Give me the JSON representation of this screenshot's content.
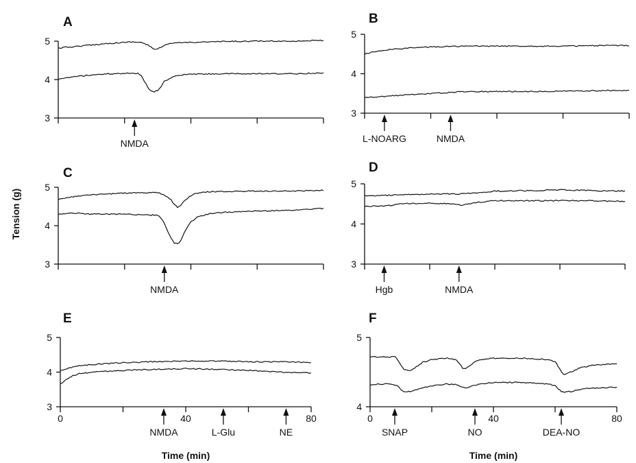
{
  "figure": {
    "ylabel": "Tension (g)"
  },
  "chart_data": [
    {
      "type": "line",
      "panel": "A",
      "ylim": [
        3,
        5
      ],
      "yticks": [
        3,
        4,
        5
      ],
      "xlim": [
        0,
        80
      ],
      "xticks": [
        0,
        20,
        40,
        60,
        80
      ],
      "xtick_labels": [],
      "xlabel": "",
      "series": [
        {
          "x": [
            0,
            5,
            10,
            15,
            20,
            22,
            25,
            27,
            29,
            31,
            33,
            36,
            40,
            50,
            60,
            70,
            80
          ],
          "values": [
            4.82,
            4.86,
            4.9,
            4.94,
            4.97,
            4.98,
            4.97,
            4.9,
            4.78,
            4.84,
            4.92,
            4.96,
            4.97,
            4.99,
            5.0,
            5.0,
            5.02
          ]
        },
        {
          "x": [
            0,
            5,
            10,
            15,
            20,
            22,
            24,
            25,
            26,
            27,
            28,
            29,
            30,
            31,
            32,
            34,
            36,
            38,
            40,
            50,
            60,
            70,
            80
          ],
          "values": [
            4.0,
            4.08,
            4.12,
            4.15,
            4.16,
            4.17,
            4.16,
            4.1,
            3.95,
            3.8,
            3.7,
            3.68,
            3.72,
            3.82,
            3.95,
            4.05,
            4.1,
            4.13,
            4.14,
            4.15,
            4.15,
            4.15,
            4.17
          ]
        }
      ],
      "annotations": [
        {
          "label": "NMDA",
          "x": 23
        }
      ]
    },
    {
      "type": "line",
      "panel": "B",
      "ylim": [
        3,
        5
      ],
      "yticks": [
        3,
        4,
        5
      ],
      "xlim": [
        0,
        80
      ],
      "xticks": [
        0,
        20,
        40,
        60,
        80
      ],
      "xtick_labels": [],
      "xlabel": "",
      "series": [
        {
          "x": [
            0,
            3,
            6,
            10,
            15,
            20,
            25,
            30,
            40,
            50,
            60,
            70,
            80
          ],
          "values": [
            4.5,
            4.56,
            4.6,
            4.63,
            4.66,
            4.68,
            4.69,
            4.7,
            4.7,
            4.7,
            4.7,
            4.71,
            4.72
          ]
        },
        {
          "x": [
            0,
            5,
            10,
            20,
            25,
            30,
            40,
            50,
            60,
            70,
            80
          ],
          "values": [
            3.4,
            3.42,
            3.45,
            3.5,
            3.52,
            3.55,
            3.55,
            3.55,
            3.56,
            3.57,
            3.58
          ]
        }
      ],
      "annotations": [
        {
          "label": "L-NOARG",
          "x": 6
        },
        {
          "label": "NMDA",
          "x": 26
        }
      ]
    },
    {
      "type": "line",
      "panel": "C",
      "ylim": [
        3,
        5
      ],
      "yticks": [
        3,
        4,
        5
      ],
      "xlim": [
        0,
        80
      ],
      "xticks": [
        0,
        20,
        40,
        60,
        80
      ],
      "xtick_labels": [],
      "xlabel": "",
      "series": [
        {
          "x": [
            0,
            5,
            10,
            20,
            30,
            32,
            34,
            35,
            36,
            37,
            38,
            40,
            42,
            45,
            50,
            60,
            70,
            80
          ],
          "values": [
            4.68,
            4.76,
            4.8,
            4.85,
            4.86,
            4.8,
            4.68,
            4.55,
            4.48,
            4.52,
            4.65,
            4.78,
            4.85,
            4.88,
            4.89,
            4.9,
            4.9,
            4.92
          ]
        },
        {
          "x": [
            0,
            5,
            10,
            20,
            30,
            31,
            32,
            33,
            34,
            35,
            36,
            37,
            38,
            39,
            40,
            42,
            45,
            50,
            60,
            70,
            80
          ],
          "values": [
            4.3,
            4.33,
            4.3,
            4.3,
            4.27,
            4.2,
            4.05,
            3.85,
            3.68,
            3.55,
            3.52,
            3.62,
            3.82,
            3.98,
            4.1,
            4.22,
            4.3,
            4.35,
            4.38,
            4.4,
            4.45
          ]
        }
      ],
      "annotations": [
        {
          "label": "NMDA",
          "x": 32
        }
      ]
    },
    {
      "type": "line",
      "panel": "D",
      "ylim": [
        3,
        5
      ],
      "yticks": [
        3,
        4,
        5
      ],
      "xlim": [
        0,
        80
      ],
      "xticks": [
        0,
        20,
        40,
        60,
        80
      ],
      "xtick_labels": [],
      "xlabel": "",
      "series": [
        {
          "x": [
            0,
            10,
            20,
            30,
            35,
            40,
            50,
            60,
            70,
            80
          ],
          "values": [
            4.7,
            4.72,
            4.75,
            4.75,
            4.78,
            4.82,
            4.83,
            4.85,
            4.83,
            4.82
          ]
        },
        {
          "x": [
            0,
            5,
            8,
            10,
            20,
            28,
            30,
            33,
            36,
            40,
            50,
            60,
            70,
            80
          ],
          "values": [
            4.44,
            4.45,
            4.46,
            4.5,
            4.52,
            4.5,
            4.46,
            4.52,
            4.55,
            4.58,
            4.58,
            4.58,
            4.58,
            4.56
          ]
        }
      ],
      "annotations": [
        {
          "label": "Hgb",
          "x": 6
        },
        {
          "label": "NMDA",
          "x": 29
        }
      ]
    },
    {
      "type": "line",
      "panel": "E",
      "ylim": [
        3,
        5
      ],
      "yticks": [
        3,
        4,
        5
      ],
      "xlim": [
        0,
        80
      ],
      "xticks": [
        0,
        20,
        40,
        60,
        80
      ],
      "xtick_labels": [
        "0",
        "",
        "40",
        "",
        "80"
      ],
      "xlabel": "Time (min)",
      "series": [
        {
          "x": [
            0,
            3,
            6,
            10,
            20,
            30,
            40,
            50,
            60,
            70,
            80
          ],
          "values": [
            4.05,
            4.12,
            4.18,
            4.22,
            4.27,
            4.3,
            4.32,
            4.32,
            4.3,
            4.3,
            4.28
          ]
        },
        {
          "x": [
            0,
            2,
            4,
            6,
            10,
            20,
            30,
            40,
            50,
            60,
            70,
            80
          ],
          "values": [
            3.65,
            3.8,
            3.9,
            3.95,
            4.0,
            4.05,
            4.08,
            4.1,
            4.08,
            4.05,
            4.0,
            3.98
          ]
        }
      ],
      "annotations": [
        {
          "label": "NMDA",
          "x": 33
        },
        {
          "label": "L-Glu",
          "x": 52
        },
        {
          "label": "NE",
          "x": 72
        }
      ]
    },
    {
      "type": "line",
      "panel": "F",
      "ylim": [
        4,
        5
      ],
      "yticks": [
        4,
        5
      ],
      "xlim": [
        0,
        80
      ],
      "xticks": [
        0,
        20,
        40,
        60,
        80
      ],
      "xtick_labels": [
        "0",
        "",
        "40",
        "",
        "80"
      ],
      "xlabel": "Time (min)",
      "series": [
        {
          "x": [
            0,
            5,
            8,
            9,
            10,
            11,
            13,
            15,
            17,
            20,
            25,
            28,
            29,
            30,
            31,
            32,
            34,
            36,
            40,
            50,
            58,
            60,
            61,
            62,
            63,
            65,
            68,
            72,
            80
          ],
          "values": [
            4.72,
            4.72,
            4.72,
            4.68,
            4.6,
            4.53,
            4.52,
            4.58,
            4.64,
            4.68,
            4.7,
            4.68,
            4.62,
            4.56,
            4.55,
            4.58,
            4.65,
            4.68,
            4.7,
            4.7,
            4.68,
            4.65,
            4.58,
            4.5,
            4.47,
            4.5,
            4.56,
            4.6,
            4.62
          ]
        },
        {
          "x": [
            0,
            5,
            8,
            9,
            10,
            11,
            13,
            15,
            17,
            20,
            25,
            28,
            29,
            30,
            31,
            32,
            34,
            36,
            40,
            50,
            58,
            60,
            61,
            62,
            63,
            65,
            68,
            72,
            80
          ],
          "values": [
            4.32,
            4.33,
            4.32,
            4.3,
            4.25,
            4.22,
            4.22,
            4.25,
            4.28,
            4.3,
            4.33,
            4.32,
            4.3,
            4.28,
            4.27,
            4.28,
            4.31,
            4.33,
            4.35,
            4.35,
            4.33,
            4.3,
            4.26,
            4.22,
            4.21,
            4.22,
            4.25,
            4.27,
            4.28
          ]
        }
      ],
      "annotations": [
        {
          "label": "SNAP",
          "x": 8
        },
        {
          "label": "NO",
          "x": 34
        },
        {
          "label": "DEA-NO",
          "x": 62
        }
      ]
    }
  ]
}
